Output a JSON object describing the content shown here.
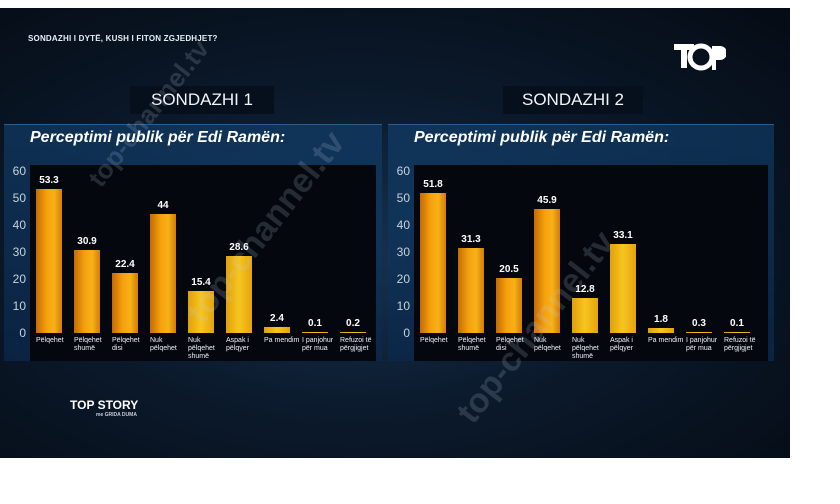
{
  "header": {
    "ticker": "SONDAZHI I DYTË, KUSH I FITON ZGJEDHJET?"
  },
  "logo": {
    "text": "TOP"
  },
  "watermark": {
    "text": "top-channel.tv"
  },
  "program": {
    "title": "TOP STORY",
    "subtitle": "me GRIDA DUMA"
  },
  "chart_data": [
    {
      "type": "bar",
      "label": "SONDAZHI 1",
      "title": "Perceptimi publik për Edi Ramën:",
      "categories": [
        "Pëlqehet",
        "Pëlqehet shumë",
        "Pëlqehet disi",
        "Nuk pëlqehet",
        "Nuk pëlqehet shumë",
        "Aspak i pëlqyer",
        "Pa mendim",
        "I panjohur për mua",
        "Refuzoi të përgjigjet"
      ],
      "values": [
        53.3,
        30.9,
        22.4,
        44,
        15.4,
        28.6,
        2.4,
        0.1,
        0.2
      ],
      "ylim": [
        0,
        60
      ],
      "yticks": [
        0,
        10,
        20,
        30,
        40,
        50,
        60
      ],
      "xlabel": "",
      "ylabel": "",
      "colors": {
        "bar": "#f5a00d",
        "light_bar": "#f7c520"
      }
    },
    {
      "type": "bar",
      "label": "SONDAZHI 2",
      "title": "Perceptimi publik për Edi Ramën:",
      "categories": [
        "Pëlqehet",
        "Pëlqehet shumë",
        "Pëlqehet disi",
        "Nuk pëlqehet",
        "Nuk pëlqehet shumë",
        "Aspak i pëlqyer",
        "Pa mendim",
        "I panjohur për mua",
        "Refuzoi të përgjigjet"
      ],
      "values": [
        51.8,
        31.3,
        20.5,
        45.9,
        12.8,
        33.1,
        1.8,
        0.3,
        0.1
      ],
      "ylim": [
        0,
        60
      ],
      "yticks": [
        0,
        10,
        20,
        30,
        40,
        50,
        60
      ],
      "xlabel": "",
      "ylabel": "",
      "colors": {
        "bar": "#f5a00d",
        "light_bar": "#f7c520"
      }
    }
  ]
}
